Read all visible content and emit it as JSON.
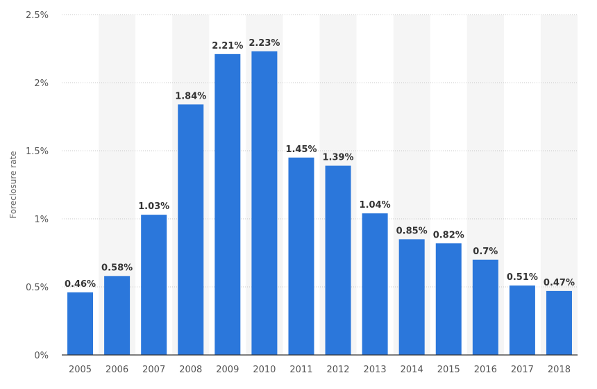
{
  "chart_data": {
    "type": "bar",
    "title": "",
    "xlabel": "",
    "ylabel": "Foreclosure rate",
    "categories": [
      "2005",
      "2006",
      "2007",
      "2008",
      "2009",
      "2010",
      "2011",
      "2012",
      "2013",
      "2014",
      "2015",
      "2016",
      "2017",
      "2018"
    ],
    "values": [
      0.46,
      0.58,
      1.03,
      1.84,
      2.21,
      2.23,
      1.45,
      1.39,
      1.04,
      0.85,
      0.82,
      0.7,
      0.51,
      0.47
    ],
    "data_labels": [
      "0.46%",
      "0.58%",
      "1.03%",
      "1.84%",
      "2.21%",
      "2.23%",
      "1.45%",
      "1.39%",
      "1.04%",
      "0.85%",
      "0.82%",
      "0.7%",
      "0.51%",
      "0.47%"
    ],
    "ylim": [
      0,
      2.5
    ],
    "yticks": [
      0,
      0.5,
      1,
      1.5,
      2,
      2.5
    ],
    "ytick_labels": [
      "0%",
      "0.5%",
      "1%",
      "1.5%",
      "2%",
      "2.5%"
    ],
    "grid": true,
    "bar_color": "#2b77db",
    "band_color": "#f5f5f5"
  }
}
